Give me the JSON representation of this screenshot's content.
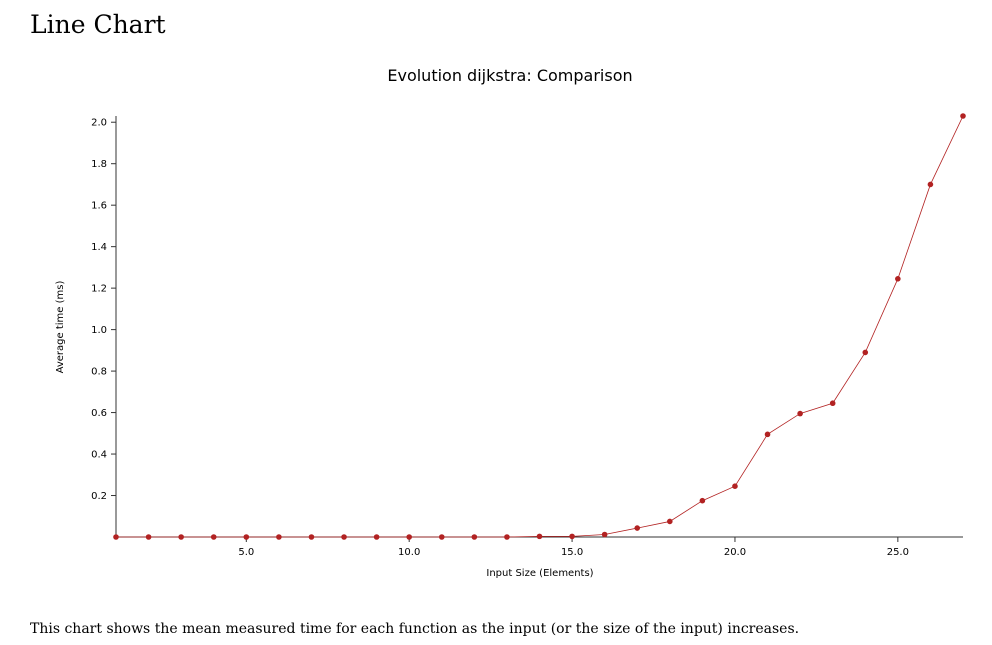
{
  "page": {
    "heading": "Line Chart",
    "description": "This chart shows the mean measured time for each function as the input (or the size of the input) increases."
  },
  "chart_data": {
    "type": "line",
    "title": "Evolution dijkstra: Comparison",
    "xlabel": "Input Size (Elements)",
    "ylabel": "Average time (ms)",
    "xlim": [
      1,
      27
    ],
    "ylim": [
      0,
      2.03
    ],
    "xticks": [
      5,
      10,
      15,
      20,
      25
    ],
    "xtick_labels": [
      "5.0",
      "10.0",
      "15.0",
      "20.0",
      "25.0"
    ],
    "yticks": [
      0.2,
      0.4,
      0.6,
      0.8,
      1.0,
      1.2,
      1.4,
      1.6,
      1.8,
      2.0
    ],
    "ytick_labels": [
      "0.2",
      "0.4",
      "0.6",
      "0.8",
      "1.0",
      "1.2",
      "1.4",
      "1.6",
      "1.8",
      "2.0"
    ],
    "grid": false,
    "series_color": "#b22222",
    "axis_color": "#333333",
    "series": [
      {
        "x": [
          1,
          2,
          3,
          4,
          5,
          6,
          7,
          8,
          9,
          10,
          11,
          12,
          13,
          14,
          15,
          16,
          17,
          18,
          19,
          20,
          21,
          22,
          23,
          24,
          25,
          26,
          27
        ],
        "y": [
          0,
          0,
          0,
          0,
          0,
          0,
          0,
          0,
          0,
          0,
          0,
          0,
          0,
          0.003,
          0.003,
          0.012,
          0.043,
          0.075,
          0.175,
          0.245,
          0.495,
          0.595,
          0.645,
          0.89,
          1.245,
          1.7,
          2.03
        ]
      }
    ]
  }
}
